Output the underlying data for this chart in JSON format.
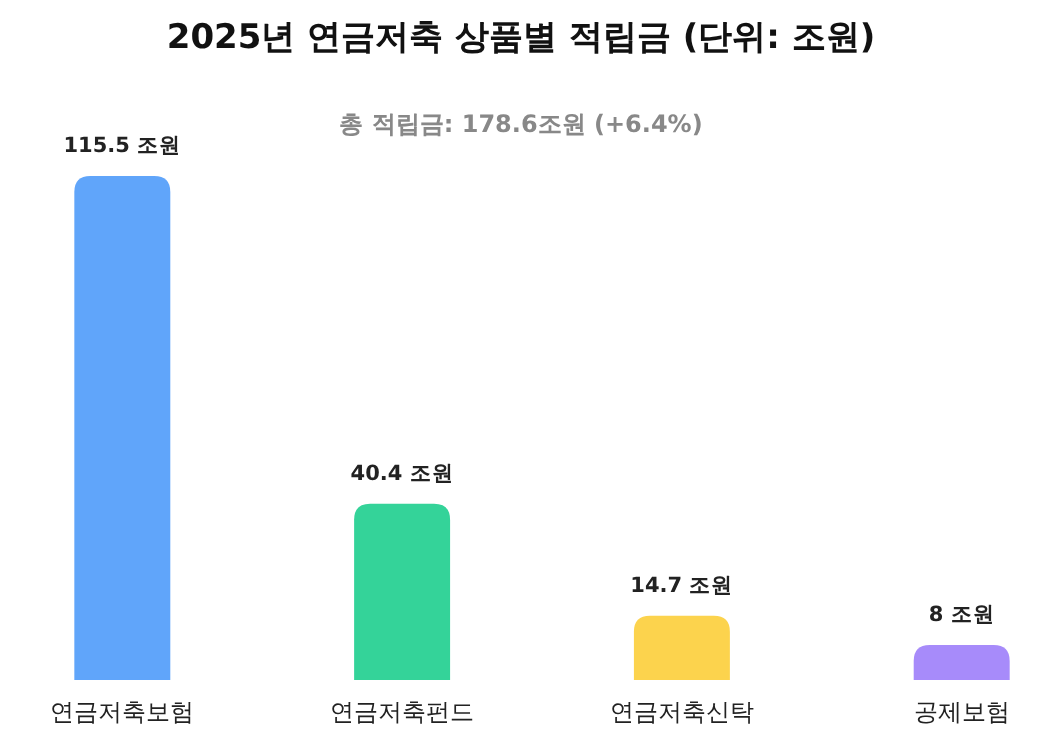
{
  "chart_data": {
    "type": "bar",
    "title": "2025년 연금저축 상품별 적립금 (단위: 조원)",
    "subtitle": "총 적립금: 178.6조원 (+6.4%)",
    "categories": [
      "연금저축보험",
      "연금저축펀드",
      "연금저축신탁",
      "공제보험"
    ],
    "values": [
      115.5,
      40.4,
      14.7,
      8
    ],
    "colors": [
      "#60a5fa",
      "#34d399",
      "#fcd34d",
      "#a78bfa"
    ],
    "value_labels": [
      "115.5 조원",
      "40.4 조원",
      "14.7 조원",
      "8 조원"
    ]
  }
}
